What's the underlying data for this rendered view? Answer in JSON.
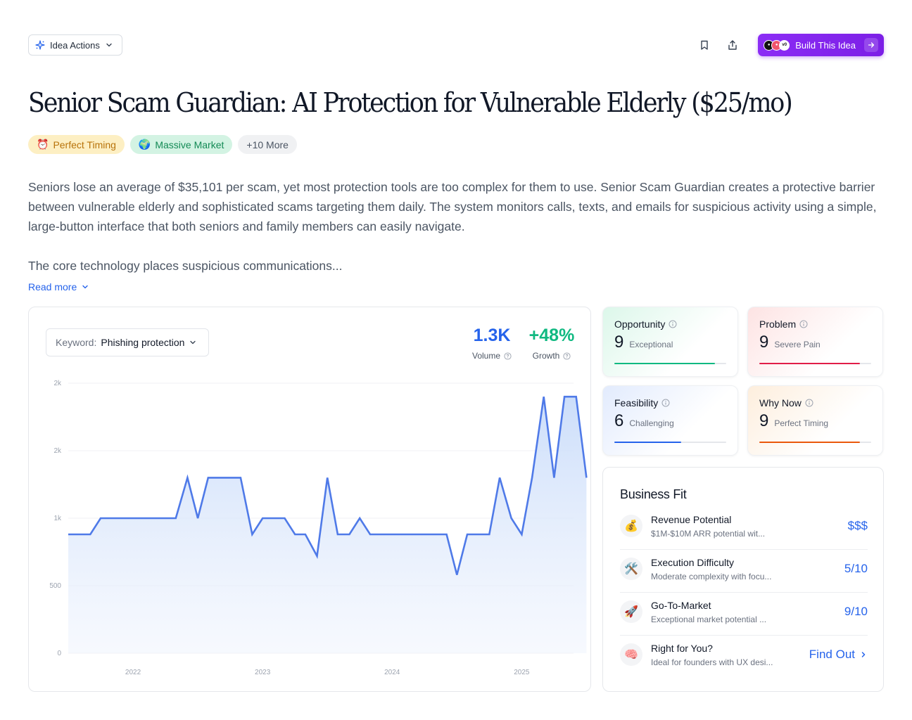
{
  "header": {
    "idea_actions_label": "Idea Actions",
    "build_label": "Build This Idea",
    "bookmark_icon": "bookmark-icon",
    "share_icon": "share-icon"
  },
  "title": "Senior Scam Guardian: AI Protection for Vulnerable Elderly ($25/mo)",
  "tags": [
    {
      "emoji": "⏰",
      "label": "Perfect Timing"
    },
    {
      "emoji": "🌍",
      "label": "Massive Market"
    },
    {
      "label": "+10 More"
    }
  ],
  "description": {
    "paragraph1": "Seniors lose an average of $35,101 per scam, yet most protection tools are too complex for them to use. Senior Scam Guardian creates a protective barrier between vulnerable elderly and sophisticated scams targeting them daily. The system monitors calls, texts, and emails for suspicious activity using a simple, large-button interface that both seniors and family members can easily navigate.",
    "paragraph2": "The core technology places suspicious communications...",
    "read_more": "Read more"
  },
  "trend": {
    "keyword_label": "Keyword:",
    "keyword_value": "Phishing protection",
    "volume_value": "1.3K",
    "volume_label": "Volume",
    "growth_value": "+48%",
    "growth_label": "Growth"
  },
  "chart_data": {
    "type": "area",
    "y_ticks": [
      {
        "label": "0",
        "value": 0
      },
      {
        "label": "500",
        "value": 500
      },
      {
        "label": "1k",
        "value": 1000
      },
      {
        "label": "2k",
        "value": 1500
      },
      {
        "label": "2k",
        "value": 2000
      }
    ],
    "ylim": [
      0,
      2000
    ],
    "x_ticks": [
      {
        "label": "2022",
        "t": 2022.0
      },
      {
        "label": "2023",
        "t": 2023.0
      },
      {
        "label": "2024",
        "t": 2024.0
      },
      {
        "label": "2025",
        "t": 2025.0
      }
    ],
    "xlim": [
      2021.5,
      2025.4
    ],
    "points": [
      [
        2021.5,
        880
      ],
      [
        2021.67,
        880
      ],
      [
        2021.75,
        1000
      ],
      [
        2021.83,
        1000
      ],
      [
        2021.92,
        1000
      ],
      [
        2022.0,
        1000
      ],
      [
        2022.08,
        1000
      ],
      [
        2022.17,
        1000
      ],
      [
        2022.25,
        1000
      ],
      [
        2022.33,
        1000
      ],
      [
        2022.42,
        1300
      ],
      [
        2022.5,
        1000
      ],
      [
        2022.58,
        1300
      ],
      [
        2022.67,
        1300
      ],
      [
        2022.75,
        1300
      ],
      [
        2022.83,
        1300
      ],
      [
        2022.92,
        880
      ],
      [
        2023.0,
        1000
      ],
      [
        2023.08,
        1000
      ],
      [
        2023.17,
        1000
      ],
      [
        2023.25,
        880
      ],
      [
        2023.33,
        880
      ],
      [
        2023.42,
        720
      ],
      [
        2023.5,
        1300
      ],
      [
        2023.58,
        880
      ],
      [
        2023.67,
        880
      ],
      [
        2023.75,
        1000
      ],
      [
        2023.83,
        880
      ],
      [
        2023.92,
        880
      ],
      [
        2024.0,
        880
      ],
      [
        2024.08,
        880
      ],
      [
        2024.17,
        880
      ],
      [
        2024.25,
        880
      ],
      [
        2024.33,
        880
      ],
      [
        2024.42,
        880
      ],
      [
        2024.5,
        580
      ],
      [
        2024.58,
        880
      ],
      [
        2024.67,
        880
      ],
      [
        2024.75,
        880
      ],
      [
        2024.83,
        1300
      ],
      [
        2024.92,
        1000
      ],
      [
        2025.0,
        880
      ],
      [
        2025.08,
        1300
      ],
      [
        2025.17,
        1900
      ],
      [
        2025.25,
        1300
      ],
      [
        2025.33,
        1900
      ],
      [
        2025.42,
        1900
      ],
      [
        2025.5,
        1300
      ]
    ],
    "line_color": "#4f7ae8",
    "grid": true
  },
  "scores": [
    {
      "title": "Opportunity",
      "value": "9",
      "desc": "Exceptional",
      "fill": 0.9,
      "color": "#10b981"
    },
    {
      "title": "Problem",
      "value": "9",
      "desc": "Severe Pain",
      "fill": 0.9,
      "color": "#e11d48"
    },
    {
      "title": "Feasibility",
      "value": "6",
      "desc": "Challenging",
      "fill": 0.6,
      "color": "#2563eb"
    },
    {
      "title": "Why Now",
      "value": "9",
      "desc": "Perfect Timing",
      "fill": 0.9,
      "color": "#ea580c"
    }
  ],
  "business_fit": {
    "title": "Business Fit",
    "rows": [
      {
        "emoji": "💰",
        "name": "Revenue Potential",
        "sub": "$1M-$10M ARR potential wit...",
        "value": "$$$"
      },
      {
        "emoji": "🛠️",
        "name": "Execution Difficulty",
        "sub": "Moderate complexity with focu...",
        "value": "5/10"
      },
      {
        "emoji": "🚀",
        "name": "Go-To-Market",
        "sub": "Exceptional market potential ...",
        "value": "9/10"
      },
      {
        "emoji": "🧠",
        "name": "Right for You?",
        "sub": "Ideal for founders with UX desi...",
        "value": "Find Out"
      }
    ]
  }
}
